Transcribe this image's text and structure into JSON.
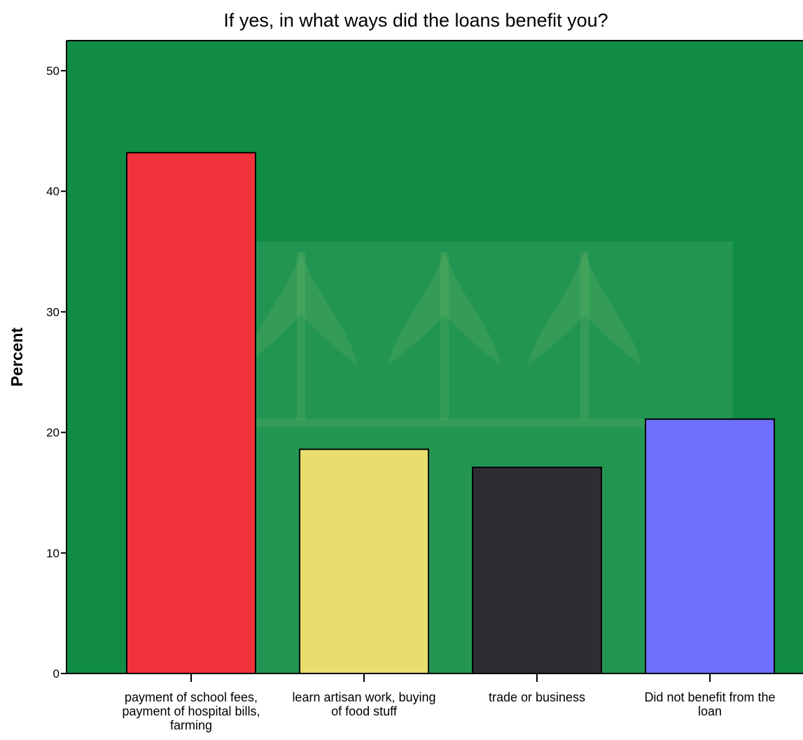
{
  "chart_data": {
    "type": "bar",
    "title": "If yes, in what ways did the loans benefit you?",
    "xlabel": "",
    "ylabel": "Percent",
    "ylim": [
      0,
      52.5
    ],
    "yticks": [
      0,
      10,
      20,
      30,
      40,
      50
    ],
    "grid": false,
    "legend": "none",
    "background_color": "#118C45",
    "categories": [
      "payment of school fees, payment of hospital bills, farming",
      "learn artisan work, buying of food stuff",
      "trade or business",
      "Did not benefit from the loan"
    ],
    "category_label_lines": [
      [
        "payment of school fees,",
        "payment of hospital bills,",
        "farming"
      ],
      [
        "learn artisan work, buying",
        "of food stuff"
      ],
      [
        "trade or business"
      ],
      [
        "Did not benefit from the",
        "loan"
      ]
    ],
    "values": [
      43.2,
      18.6,
      17.1,
      21.1
    ],
    "bar_colors": [
      "#F0333A",
      "#E8DE6E",
      "#2E2E32",
      "#6E70FB"
    ]
  }
}
